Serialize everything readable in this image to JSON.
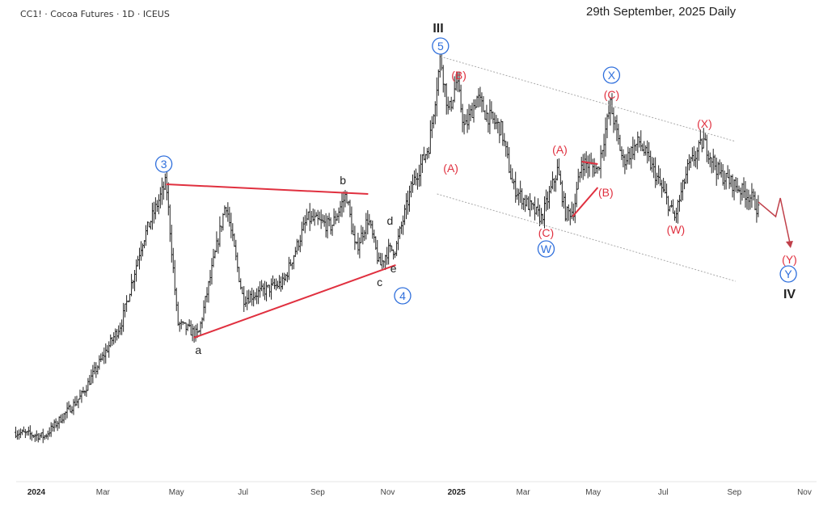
{
  "header": {
    "symbol": "CC1! · Cocoa Futures · 1D · ICEUS",
    "date_title": "29th September, 2025 Daily"
  },
  "colors": {
    "bars": "#222222",
    "wave_red": "#e0303f",
    "wave_blue": "#2f6fdc",
    "channel": "#aaaaaa",
    "label_black": "#222222"
  },
  "chart_data": {
    "type": "ohlc",
    "title": "CC1! · Cocoa Futures · 1D · ICEUS",
    "x_unit": "days since 2024-01-01",
    "xlim": [
      -18,
      680
    ],
    "ylim": [
      3062,
      14224
    ],
    "grid": false,
    "x_ticks": [
      {
        "label": "2024",
        "day": 0,
        "year": true
      },
      {
        "label": "Mar",
        "day": 58
      },
      {
        "label": "May",
        "day": 122
      },
      {
        "label": "Jul",
        "day": 180
      },
      {
        "label": "Sep",
        "day": 245
      },
      {
        "label": "Nov",
        "day": 306
      },
      {
        "label": "2025",
        "day": 366,
        "year": true
      },
      {
        "label": "Mar",
        "day": 424
      },
      {
        "label": "May",
        "day": 485
      },
      {
        "label": "Jul",
        "day": 546
      },
      {
        "label": "Sep",
        "day": 608
      },
      {
        "label": "Nov",
        "day": 669
      }
    ],
    "price_path": [
      [
        -18,
        4102
      ],
      [
        7,
        4008
      ],
      [
        39,
        4954
      ],
      [
        74,
        6656
      ],
      [
        92,
        8548
      ],
      [
        113,
        9967
      ],
      [
        123,
        6656
      ],
      [
        141,
        6373
      ],
      [
        165,
        9494
      ],
      [
        180,
        7224
      ],
      [
        215,
        7602
      ],
      [
        236,
        9116
      ],
      [
        257,
        8927
      ],
      [
        270,
        9684
      ],
      [
        278,
        8359
      ],
      [
        289,
        9116
      ],
      [
        299,
        7984
      ],
      [
        306,
        8359
      ],
      [
        313,
        8400
      ],
      [
        327,
        9873
      ],
      [
        342,
        10819
      ],
      [
        352,
        12900
      ],
      [
        359,
        11576
      ],
      [
        366,
        12332
      ],
      [
        373,
        11197
      ],
      [
        384,
        11954
      ],
      [
        391,
        11576
      ],
      [
        405,
        11197
      ],
      [
        415,
        9873
      ],
      [
        426,
        9494
      ],
      [
        440,
        9116
      ],
      [
        454,
        10251
      ],
      [
        461,
        9211
      ],
      [
        468,
        9306
      ],
      [
        475,
        10440
      ],
      [
        489,
        10251
      ],
      [
        500,
        11765
      ],
      [
        511,
        10440
      ],
      [
        525,
        10913
      ],
      [
        539,
        10157
      ],
      [
        556,
        9116
      ],
      [
        567,
        10251
      ],
      [
        581,
        10913
      ],
      [
        595,
        10157
      ],
      [
        623,
        9589
      ],
      [
        629,
        9300
      ]
    ],
    "wave_labels": [
      {
        "text": "III",
        "day": 350,
        "price": 13562,
        "color": "black",
        "size": 16
      },
      {
        "text": "5",
        "day": 352,
        "price": 13146,
        "color": "blue",
        "circle": true
      },
      {
        "text": "(B)",
        "day": 368,
        "price": 12465,
        "color": "red"
      },
      {
        "text": "(A)",
        "day": 361,
        "price": 10289,
        "color": "red"
      },
      {
        "text": "3",
        "day": 111,
        "price": 10384,
        "color": "blue",
        "circle": true
      },
      {
        "text": "b",
        "day": 267,
        "price": 10005,
        "color": "black"
      },
      {
        "text": "a",
        "day": 141,
        "price": 6032,
        "color": "black"
      },
      {
        "text": "d",
        "day": 308,
        "price": 9059,
        "color": "black"
      },
      {
        "text": "e",
        "day": 311,
        "price": 7943,
        "color": "black"
      },
      {
        "text": "c",
        "day": 299,
        "price": 7621,
        "color": "black"
      },
      {
        "text": "4",
        "day": 319,
        "price": 7300,
        "color": "blue",
        "circle": true
      },
      {
        "text": "(A)",
        "day": 456,
        "price": 10724,
        "color": "red"
      },
      {
        "text": "(B)",
        "day": 496,
        "price": 9721,
        "color": "red"
      },
      {
        "text": "(C)",
        "day": 444,
        "price": 8775,
        "color": "red"
      },
      {
        "text": "W",
        "day": 444,
        "price": 8397,
        "color": "blue",
        "circle": true
      },
      {
        "text": "X",
        "day": 501,
        "price": 12465,
        "color": "blue",
        "circle": true
      },
      {
        "text": "(C)",
        "day": 501,
        "price": 12011,
        "color": "red"
      },
      {
        "text": "(X)",
        "day": 582,
        "price": 11330,
        "color": "red"
      },
      {
        "text": "(W)",
        "day": 557,
        "price": 8851,
        "color": "red"
      },
      {
        "text": "(Y)",
        "day": 656,
        "price": 8151,
        "color": "red"
      },
      {
        "text": "Y",
        "day": 655,
        "price": 7811,
        "color": "blue",
        "circle": true
      },
      {
        "text": "IV",
        "day": 656,
        "price": 7337,
        "color": "black",
        "size": 16
      }
    ],
    "trendlines": [
      {
        "name": "triangle-upper-line",
        "from": [
          113,
          9911
        ],
        "to": [
          289,
          9684
        ],
        "color": "red"
      },
      {
        "name": "triangle-lower-line",
        "from": [
          137,
          6316
        ],
        "to": [
          313,
          8019
        ],
        "color": "red"
      },
      {
        "name": "channel-upper-line",
        "from": [
          352,
          12900
        ],
        "to": [
          609,
          10913
        ],
        "color": "gray",
        "dotted": true
      },
      {
        "name": "channel-lower-line",
        "from": [
          349,
          9684
        ],
        "to": [
          609,
          7640
        ],
        "color": "gray",
        "dotted": true
      },
      {
        "name": "b-wave-line",
        "from": [
          467,
          9154
        ],
        "to": [
          489,
          9835
        ],
        "color": "red"
      },
      {
        "name": "b-wave-top-line",
        "from": [
          475,
          10440
        ],
        "to": [
          489,
          10384
        ],
        "color": "red"
      }
    ],
    "projection_arrow": [
      [
        629,
        9494
      ],
      [
        644,
        9154
      ],
      [
        648,
        9589
      ],
      [
        657,
        8454
      ]
    ]
  }
}
